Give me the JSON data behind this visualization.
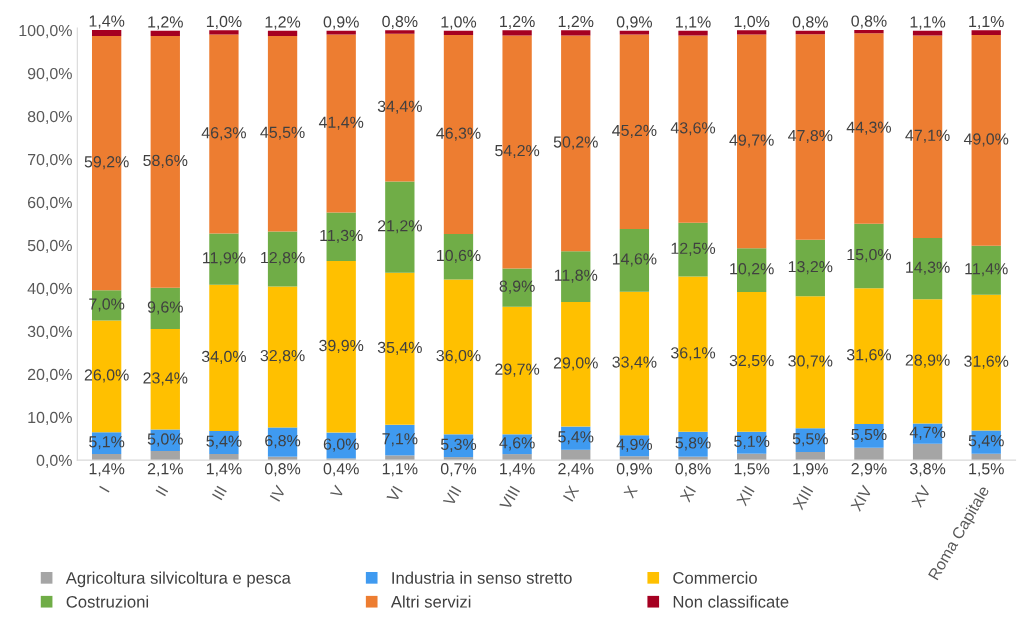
{
  "chart_data": {
    "type": "bar",
    "stacked": true,
    "categories": [
      "I",
      "II",
      "III",
      "IV",
      "V",
      "VI",
      "VII",
      "VIII",
      "IX",
      "X",
      "XI",
      "XII",
      "XIII",
      "XIV",
      "XV",
      "Roma Capitale"
    ],
    "series": [
      {
        "name": "Agricoltura silvicoltura e pesca",
        "color": "#a5a5a5",
        "values": [
          1.4,
          2.1,
          1.4,
          0.8,
          0.4,
          1.1,
          0.7,
          1.4,
          2.4,
          0.9,
          0.8,
          1.5,
          1.9,
          2.9,
          3.8,
          1.5
        ],
        "value_labels": [
          "1,4%",
          "2,1%",
          "1,4%",
          "0,8%",
          "0,4%",
          "1,1%",
          "0,7%",
          "1,4%",
          "2,4%",
          "0,9%",
          "0,8%",
          "1,5%",
          "1,9%",
          "2,9%",
          "3,8%",
          "1,5%"
        ]
      },
      {
        "name": "Industria in senso stretto",
        "color": "#3f9af0",
        "values": [
          5.1,
          5.0,
          5.4,
          6.8,
          6.0,
          7.1,
          5.3,
          4.6,
          5.4,
          4.9,
          5.8,
          5.1,
          5.5,
          5.5,
          4.7,
          5.4
        ],
        "value_labels": [
          "5,1%",
          "5,0%",
          "5,4%",
          "6,8%",
          "6,0%",
          "7,1%",
          "5,3%",
          "4,6%",
          "5,4%",
          "4,9%",
          "5,8%",
          "5,1%",
          "5,5%",
          "5,5%",
          "4,7%",
          "5,4%"
        ]
      },
      {
        "name": "Commercio",
        "color": "#ffc000",
        "values": [
          26.0,
          23.4,
          34.0,
          32.8,
          39.9,
          35.4,
          36.0,
          29.7,
          29.0,
          33.4,
          36.1,
          32.5,
          30.7,
          31.6,
          28.9,
          31.6
        ],
        "value_labels": [
          "26,0%",
          "23,4%",
          "34,0%",
          "32,8%",
          "39,9%",
          "35,4%",
          "36,0%",
          "29,7%",
          "29,0%",
          "33,4%",
          "36,1%",
          "32,5%",
          "30,7%",
          "31,6%",
          "28,9%",
          "31,6%"
        ]
      },
      {
        "name": "Costruzioni",
        "color": "#70ad47",
        "values": [
          7.0,
          9.6,
          11.9,
          12.8,
          11.3,
          21.2,
          10.6,
          8.9,
          11.8,
          14.6,
          12.5,
          10.2,
          13.2,
          15.0,
          14.3,
          11.4
        ],
        "value_labels": [
          "7,0%",
          "9,6%",
          "11,9%",
          "12,8%",
          "11,3%",
          "21,2%",
          "10,6%",
          "8,9%",
          "11,8%",
          "14,6%",
          "12,5%",
          "10,2%",
          "13,2%",
          "15,0%",
          "14,3%",
          "11,4%"
        ]
      },
      {
        "name": "Altri servizi",
        "color": "#ed7d31",
        "values": [
          59.2,
          58.6,
          46.3,
          45.5,
          41.4,
          34.4,
          46.3,
          54.2,
          50.2,
          45.2,
          43.6,
          49.7,
          47.8,
          44.3,
          47.1,
          49.0
        ],
        "value_labels": [
          "59,2%",
          "58,6%",
          "46,3%",
          "45,5%",
          "41,4%",
          "34,4%",
          "46,3%",
          "54,2%",
          "50,2%",
          "45,2%",
          "43,6%",
          "49,7%",
          "47,8%",
          "44,3%",
          "47,1%",
          "49,0%"
        ]
      },
      {
        "name": "Non classificate",
        "color": "#a50021",
        "values": [
          1.4,
          1.2,
          1.0,
          1.2,
          0.9,
          0.8,
          1.0,
          1.2,
          1.2,
          0.9,
          1.1,
          1.0,
          0.8,
          0.8,
          1.1,
          1.1
        ],
        "value_labels": [
          "1,4%",
          "1,2%",
          "1,0%",
          "1,2%",
          "0,9%",
          "0,8%",
          "1,0%",
          "1,2%",
          "1,2%",
          "0,9%",
          "1,1%",
          "1,0%",
          "0,8%",
          "0,8%",
          "1,1%",
          "1,1%"
        ]
      }
    ],
    "ylim": [
      0,
      100.5
    ],
    "yticks": [
      {
        "value": 0,
        "label": "0,0%"
      },
      {
        "value": 10,
        "label": "10,0%"
      },
      {
        "value": 20,
        "label": "20,0%"
      },
      {
        "value": 30,
        "label": "30,0%"
      },
      {
        "value": 40,
        "label": "40,0%"
      },
      {
        "value": 50,
        "label": "50,0%"
      },
      {
        "value": 60,
        "label": "60,0%"
      },
      {
        "value": 70,
        "label": "70,0%"
      },
      {
        "value": 80,
        "label": "80,0%"
      },
      {
        "value": 90,
        "label": "90,0%"
      },
      {
        "value": 100,
        "label": "100,0%"
      }
    ],
    "grid": false,
    "legend": "bottom"
  }
}
